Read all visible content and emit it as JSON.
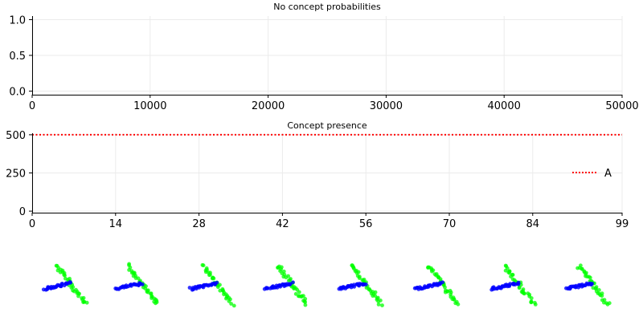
{
  "chart_data": [
    {
      "type": "line",
      "title": "No concept probabilities",
      "xlabel": "",
      "ylabel": "",
      "xlim": [
        0,
        50000
      ],
      "ylim": [
        -0.05,
        1.05
      ],
      "xticks": [
        0,
        10000,
        20000,
        30000,
        40000,
        50000
      ],
      "yticks": [
        0.0,
        0.5,
        1.0
      ],
      "xtick_labels": [
        "0",
        "10000",
        "20000",
        "30000",
        "40000",
        "50000"
      ],
      "ytick_labels": [
        "0.0",
        "0.5",
        "1.0"
      ],
      "grid": true,
      "series": []
    },
    {
      "type": "line",
      "title": "Concept presence",
      "xlabel": "",
      "ylabel": "",
      "xlim": [
        0,
        99
      ],
      "ylim": [
        -10,
        510
      ],
      "xticks": [
        0,
        14,
        28,
        42,
        56,
        70,
        84,
        99
      ],
      "yticks": [
        0,
        250,
        500
      ],
      "xtick_labels": [
        "0",
        "14",
        "28",
        "42",
        "56",
        "70",
        "84",
        "99"
      ],
      "ytick_labels": [
        "0",
        "250",
        "500"
      ],
      "grid": true,
      "legend": "center-right",
      "series": [
        {
          "name": "A",
          "style": "dotted",
          "color": "#ff0000",
          "x": [
            0,
            99
          ],
          "y": [
            500,
            500
          ]
        }
      ]
    },
    {
      "type": "scatter",
      "title": "",
      "panels": 8,
      "series_colors": {
        "concept_a": "#0000ff",
        "concept_b": "#00ff00"
      },
      "note": "Each panel shows two point clusters forming a cross: a short near-horizontal cluster and a longer diagonal cluster."
    }
  ],
  "colors": {
    "axis": "#000000",
    "grid": "#ebebeb",
    "series_A": "#ff0000"
  }
}
